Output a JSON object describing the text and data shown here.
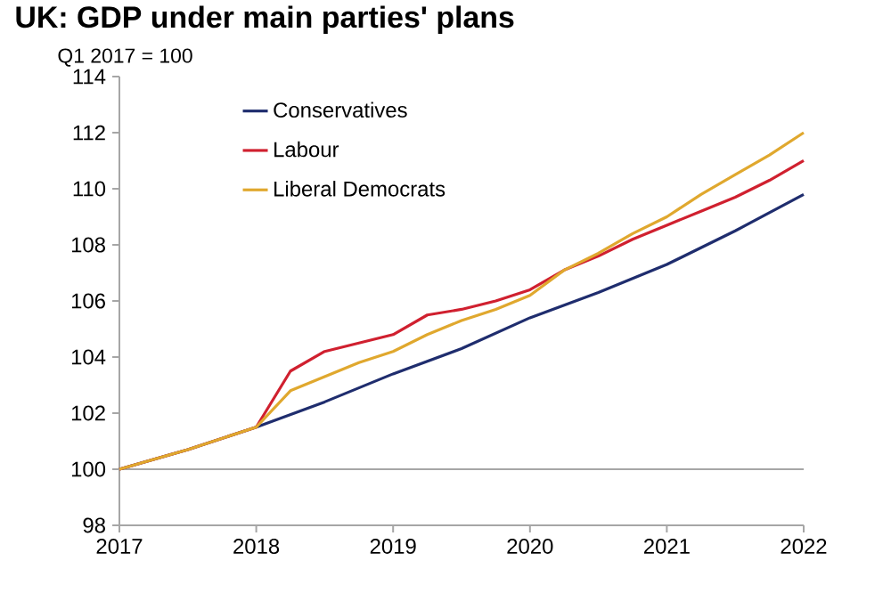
{
  "chart_data": {
    "type": "line",
    "title": "UK: GDP under main parties' plans",
    "subtitle": "Q1 2017 = 100",
    "xlim": [
      2017,
      2022
    ],
    "xticks": [
      2017,
      2018,
      2019,
      2020,
      2021,
      2022
    ],
    "ylim": [
      98,
      114
    ],
    "yticks": [
      98,
      100,
      102,
      104,
      106,
      108,
      110,
      112,
      114
    ],
    "grid": false,
    "legend": "top left",
    "marker": "none",
    "line_style": "solid",
    "ref_lines": [
      {
        "axis": "y",
        "value": 100,
        "color": "#a6a6a6"
      }
    ],
    "series": [
      {
        "name": "Conservatives",
        "color": "#1f2d6e",
        "x": [
          2017,
          2017.5,
          2018,
          2018.5,
          2019,
          2019.5,
          2020,
          2020.5,
          2021,
          2021.5,
          2022
        ],
        "values": [
          100,
          100.7,
          101.5,
          102.4,
          103.4,
          104.3,
          105.4,
          106.3,
          107.3,
          108.5,
          109.8
        ]
      },
      {
        "name": "Labour",
        "color": "#d0202f",
        "x": [
          2017,
          2017.5,
          2018,
          2018.25,
          2018.5,
          2018.75,
          2019,
          2019.25,
          2019.5,
          2019.75,
          2020,
          2020.25,
          2020.5,
          2020.75,
          2021,
          2021.25,
          2021.5,
          2021.75,
          2022
        ],
        "values": [
          100,
          100.7,
          101.5,
          103.5,
          104.2,
          104.5,
          104.8,
          105.5,
          105.7,
          106.0,
          106.4,
          107.1,
          107.6,
          108.2,
          108.7,
          109.2,
          109.7,
          110.3,
          111.0
        ]
      },
      {
        "name": "Liberal Democrats",
        "color": "#e0a82e",
        "x": [
          2017,
          2017.5,
          2018,
          2018.25,
          2018.5,
          2018.75,
          2019,
          2019.25,
          2019.5,
          2019.75,
          2020,
          2020.25,
          2020.5,
          2020.75,
          2021,
          2021.25,
          2021.5,
          2021.75,
          2022
        ],
        "values": [
          100,
          100.7,
          101.5,
          102.8,
          103.3,
          103.8,
          104.2,
          104.8,
          105.3,
          105.7,
          106.2,
          107.1,
          107.7,
          108.4,
          109.0,
          109.8,
          110.5,
          111.2,
          112.0
        ]
      }
    ]
  }
}
